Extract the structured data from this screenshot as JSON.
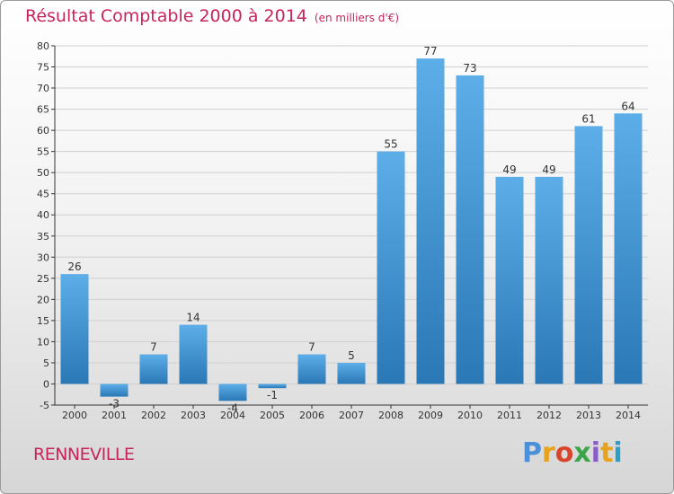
{
  "header": {
    "title": "Résultat Comptable 2000 à 2014",
    "subtitle": "(en milliers d'€)"
  },
  "footer": {
    "place": "RENNEVILLE",
    "brand": "Proxiti"
  },
  "colors": {
    "title": "#c8245a",
    "bar_light": "#5daee8",
    "bar_dark": "#2a78b6",
    "axis": "#333333",
    "grid": "#d0d0d0"
  },
  "chart_data": {
    "type": "bar",
    "title": "Résultat Comptable 2000 à 2014",
    "subtitle": "(en milliers d'€)",
    "xlabel": "",
    "ylabel": "",
    "categories": [
      "2000",
      "2001",
      "2002",
      "2003",
      "2004",
      "2005",
      "2006",
      "2007",
      "2008",
      "2009",
      "2010",
      "2011",
      "2012",
      "2013",
      "2014"
    ],
    "values": [
      26,
      -3,
      7,
      14,
      -4,
      -1,
      7,
      5,
      55,
      77,
      73,
      49,
      49,
      61,
      64
    ],
    "ylim": [
      -5,
      80
    ],
    "yticks": [
      -5,
      0,
      5,
      10,
      15,
      20,
      25,
      30,
      35,
      40,
      45,
      50,
      55,
      60,
      65,
      70,
      75,
      80
    ],
    "grid": true,
    "legend": "none"
  }
}
